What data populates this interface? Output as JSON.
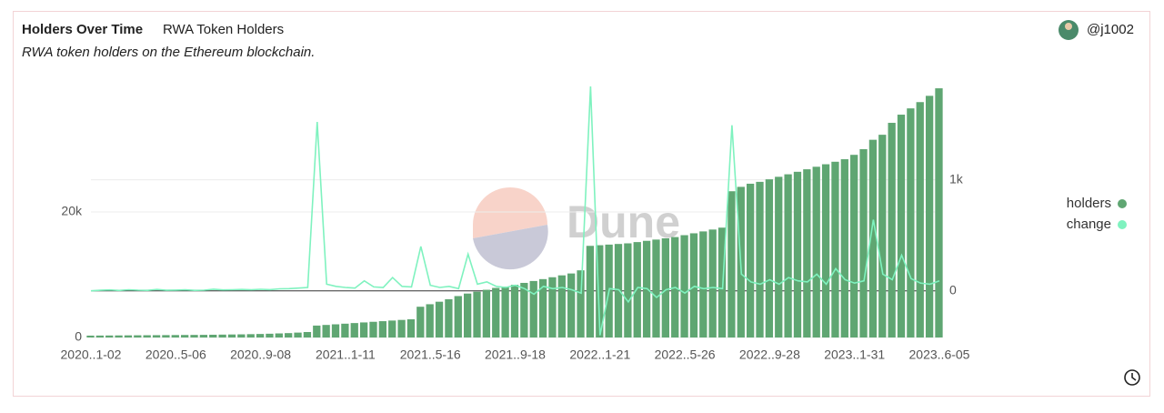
{
  "header": {
    "title": "Holders Over Time",
    "subtitle": "RWA Token Holders",
    "description": "RWA token holders on the Ethereum blockchain.",
    "user": "@j1002",
    "watermark": "Dune"
  },
  "chart_data": {
    "type": "bar-line",
    "categories": [
      "2020..1-02",
      null,
      null,
      null,
      null,
      null,
      null,
      null,
      null,
      "2020..5-06",
      null,
      null,
      null,
      null,
      null,
      null,
      null,
      null,
      "2020..9-08",
      null,
      null,
      null,
      null,
      null,
      null,
      null,
      null,
      "2021..1-11",
      null,
      null,
      null,
      null,
      null,
      null,
      null,
      null,
      "2021..5-16",
      null,
      null,
      null,
      null,
      null,
      null,
      null,
      null,
      "2021..9-18",
      null,
      null,
      null,
      null,
      null,
      null,
      null,
      null,
      "2022..1-21",
      null,
      null,
      null,
      null,
      null,
      null,
      null,
      null,
      "2022..5-26",
      null,
      null,
      null,
      null,
      null,
      null,
      null,
      null,
      "2022..9-28",
      null,
      null,
      null,
      null,
      null,
      null,
      null,
      null,
      "2023..1-31",
      null,
      null,
      null,
      null,
      null,
      null,
      null,
      null,
      "2023..6-05"
    ],
    "series": [
      {
        "name": "holders",
        "color": "#5fa672",
        "values": [
          300,
          310,
          320,
          330,
          340,
          350,
          360,
          370,
          380,
          390,
          400,
          410,
          420,
          440,
          460,
          480,
          500,
          530,
          560,
          600,
          650,
          700,
          780,
          870,
          1900,
          2000,
          2100,
          2200,
          2300,
          2400,
          2500,
          2600,
          2700,
          2800,
          2900,
          4900,
          5300,
          5700,
          6100,
          6600,
          7000,
          7300,
          7600,
          7900,
          8100,
          8400,
          8700,
          9000,
          9300,
          9600,
          9900,
          10200,
          10700,
          14600,
          14700,
          14800,
          14900,
          15000,
          15200,
          15400,
          15600,
          15800,
          16000,
          16300,
          16600,
          16900,
          17200,
          17500,
          23300,
          24000,
          24500,
          24800,
          25200,
          25600,
          26000,
          26400,
          26800,
          27200,
          27600,
          28000,
          28400,
          29100,
          30000,
          31500,
          32300,
          34200,
          35500,
          36500,
          37500,
          38500,
          39700
        ]
      },
      {
        "name": "change",
        "color": "#7ff2bf",
        "axis": "y2",
        "values": [
          0,
          5,
          8,
          3,
          10,
          6,
          4,
          12,
          5,
          7,
          9,
          4,
          6,
          15,
          8,
          10,
          12,
          9,
          14,
          11,
          18,
          20,
          25,
          30,
          1520,
          60,
          40,
          30,
          25,
          90,
          35,
          30,
          120,
          40,
          35,
          400,
          50,
          30,
          40,
          20,
          330,
          60,
          80,
          40,
          30,
          50,
          20,
          -30,
          40,
          20,
          30,
          10,
          -20,
          1840,
          -400,
          20,
          10,
          -100,
          30,
          20,
          -60,
          10,
          30,
          -20,
          40,
          20,
          30,
          20,
          1490,
          150,
          80,
          60,
          100,
          60,
          120,
          90,
          80,
          150,
          60,
          200,
          100,
          70,
          90,
          640,
          150,
          100,
          320,
          110,
          70,
          60,
          90
        ]
      }
    ],
    "ylim": [
      0,
      40000
    ],
    "yticks": [
      0,
      {
        "value": 20000,
        "label": "20k"
      }
    ],
    "y2lim": [
      -420,
      1840
    ],
    "y2ticks": [
      0,
      {
        "value": 1000,
        "label": "1k"
      }
    ],
    "grid": true,
    "legend": "right"
  }
}
